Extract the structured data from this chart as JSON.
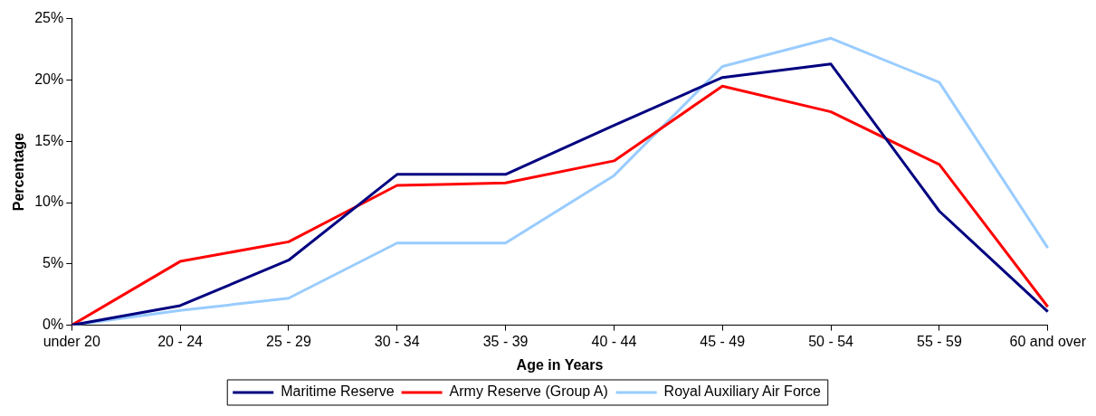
{
  "chart_data": {
    "type": "line",
    "xlabel": "Age in Years",
    "ylabel": "Percentage",
    "categories": [
      "under 20",
      "20 - 24",
      "25 - 29",
      "30 - 34",
      "35 - 39",
      "40 - 44",
      "45 - 49",
      "50 - 54",
      "55 - 59",
      "60 and over"
    ],
    "series": [
      {
        "name": "Maritime Reserve",
        "color": "#000080",
        "values": [
          0,
          1.6,
          5.3,
          12.3,
          12.3,
          16.3,
          20.2,
          21.3,
          9.3,
          1.1
        ]
      },
      {
        "name": "Army Reserve (Group A)",
        "color": "#ff0000",
        "values": [
          0,
          5.2,
          6.8,
          11.4,
          11.6,
          13.4,
          19.5,
          17.4,
          13.1,
          1.5
        ]
      },
      {
        "name": "Royal Auxiliary Air Force",
        "color": "#99ccff",
        "values": [
          0,
          1.2,
          2.2,
          6.7,
          6.7,
          12.2,
          21.1,
          23.4,
          19.8,
          6.3
        ]
      }
    ],
    "ylim": [
      0,
      25
    ],
    "yticks": [
      {
        "value": 0,
        "label": "0%"
      },
      {
        "value": 5,
        "label": "5%"
      },
      {
        "value": 10,
        "label": "10%"
      },
      {
        "value": 15,
        "label": "15%"
      },
      {
        "value": 20,
        "label": "20%"
      },
      {
        "value": 25,
        "label": "25%"
      }
    ],
    "grid": false,
    "legend": "bottom",
    "marker": "none",
    "line_style": "solid"
  }
}
